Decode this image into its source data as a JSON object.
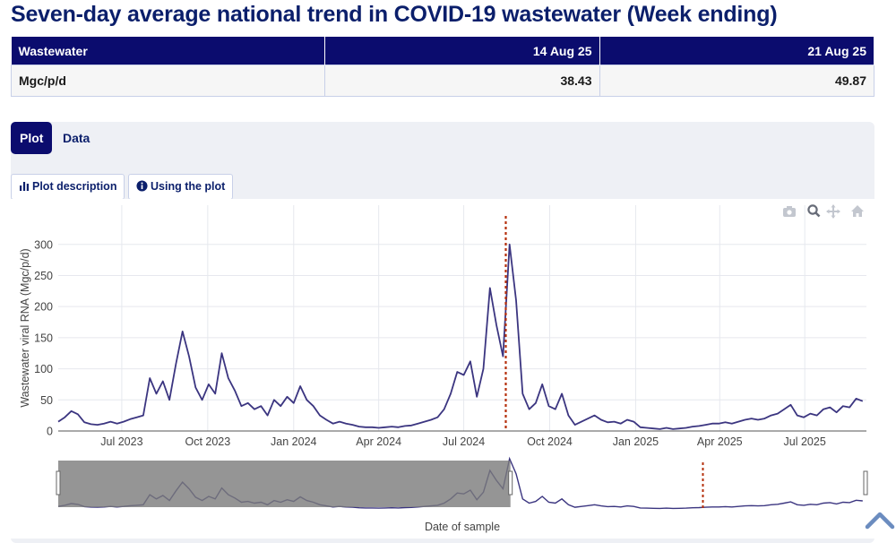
{
  "page": {
    "title": "Seven-day average national trend in COVID-19 wastewater (Week ending)"
  },
  "summary_table": {
    "header": {
      "label": "Wastewater",
      "col1": "14 Aug 25",
      "col2": "21 Aug 25"
    },
    "row": {
      "label": "Mgc/p/d",
      "col1": "38.43",
      "col2": "49.87"
    }
  },
  "tabs": [
    {
      "label": "Plot",
      "active": true
    },
    {
      "label": "Data",
      "active": false
    }
  ],
  "buttons": {
    "plot_description": "Plot description",
    "using_plot": "Using the plot"
  },
  "modebar_icons": [
    "camera-icon",
    "zoom-icon",
    "pan-icon",
    "home-icon"
  ],
  "colors": {
    "line": "#3b3580",
    "marker": "#b5300d",
    "grid": "#e6e8ee",
    "range_shade": "#8a8a8a",
    "header_bg": "#0b0c6e"
  },
  "chart_data": {
    "type": "line",
    "xlabel": "Date of sample",
    "ylabel": "Wastewater viral RNA (Mgc/p/d)",
    "ylim": [
      0,
      340
    ],
    "xlim": [
      "2023-04-24",
      "2025-09-05"
    ],
    "y_ticks": [
      0,
      50,
      100,
      150,
      200,
      250,
      300
    ],
    "x_ticks": [
      {
        "date": "2023-07-01",
        "label": "Jul 2023"
      },
      {
        "date": "2023-10-01",
        "label": "Oct 2023"
      },
      {
        "date": "2024-01-01",
        "label": "Jan 2024"
      },
      {
        "date": "2024-04-01",
        "label": "Apr 2024"
      },
      {
        "date": "2024-07-01",
        "label": "Jul 2024"
      },
      {
        "date": "2024-10-01",
        "label": "Oct 2024"
      },
      {
        "date": "2025-01-01",
        "label": "Jan 2025"
      },
      {
        "date": "2025-04-01",
        "label": "Apr 2025"
      },
      {
        "date": "2025-07-01",
        "label": "Jul 2025"
      }
    ],
    "grid": true,
    "marker_line_date": "2024-08-15",
    "range_selection": [
      "2023-04-24",
      "2024-08-20"
    ],
    "series": [
      {
        "points": [
          [
            "2023-04-24",
            15
          ],
          [
            "2023-05-01",
            22
          ],
          [
            "2023-05-08",
            32
          ],
          [
            "2023-05-15",
            27
          ],
          [
            "2023-05-22",
            14
          ],
          [
            "2023-05-29",
            11
          ],
          [
            "2023-06-05",
            10
          ],
          [
            "2023-06-12",
            12
          ],
          [
            "2023-06-19",
            15
          ],
          [
            "2023-06-26",
            12
          ],
          [
            "2023-07-03",
            15
          ],
          [
            "2023-07-10",
            19
          ],
          [
            "2023-07-17",
            22
          ],
          [
            "2023-07-24",
            25
          ],
          [
            "2023-07-31",
            85
          ],
          [
            "2023-08-07",
            60
          ],
          [
            "2023-08-14",
            80
          ],
          [
            "2023-08-21",
            50
          ],
          [
            "2023-08-28",
            108
          ],
          [
            "2023-09-04",
            160
          ],
          [
            "2023-09-11",
            120
          ],
          [
            "2023-09-18",
            70
          ],
          [
            "2023-09-25",
            50
          ],
          [
            "2023-10-02",
            75
          ],
          [
            "2023-10-09",
            60
          ],
          [
            "2023-10-16",
            125
          ],
          [
            "2023-10-23",
            85
          ],
          [
            "2023-10-30",
            65
          ],
          [
            "2023-11-06",
            40
          ],
          [
            "2023-11-13",
            45
          ],
          [
            "2023-11-20",
            35
          ],
          [
            "2023-11-27",
            40
          ],
          [
            "2023-12-04",
            25
          ],
          [
            "2023-12-11",
            50
          ],
          [
            "2023-12-18",
            40
          ],
          [
            "2023-12-25",
            55
          ],
          [
            "2024-01-01",
            45
          ],
          [
            "2024-01-08",
            72
          ],
          [
            "2024-01-15",
            50
          ],
          [
            "2024-01-22",
            40
          ],
          [
            "2024-01-29",
            25
          ],
          [
            "2024-02-05",
            18
          ],
          [
            "2024-02-12",
            12
          ],
          [
            "2024-02-19",
            15
          ],
          [
            "2024-02-26",
            12
          ],
          [
            "2024-03-04",
            10
          ],
          [
            "2024-03-11",
            7
          ],
          [
            "2024-03-18",
            6
          ],
          [
            "2024-03-25",
            6
          ],
          [
            "2024-04-01",
            5
          ],
          [
            "2024-04-08",
            6
          ],
          [
            "2024-04-15",
            7
          ],
          [
            "2024-04-22",
            6
          ],
          [
            "2024-04-29",
            8
          ],
          [
            "2024-05-06",
            9
          ],
          [
            "2024-05-13",
            12
          ],
          [
            "2024-05-20",
            15
          ],
          [
            "2024-05-27",
            18
          ],
          [
            "2024-06-03",
            22
          ],
          [
            "2024-06-10",
            35
          ],
          [
            "2024-06-17",
            60
          ],
          [
            "2024-06-24",
            95
          ],
          [
            "2024-07-01",
            90
          ],
          [
            "2024-07-08",
            112
          ],
          [
            "2024-07-15",
            55
          ],
          [
            "2024-07-22",
            100
          ],
          [
            "2024-07-29",
            230
          ],
          [
            "2024-08-05",
            170
          ],
          [
            "2024-08-12",
            120
          ],
          [
            "2024-08-19",
            300
          ],
          [
            "2024-08-26",
            210
          ],
          [
            "2024-09-02",
            60
          ],
          [
            "2024-09-09",
            35
          ],
          [
            "2024-09-16",
            45
          ],
          [
            "2024-09-23",
            75
          ],
          [
            "2024-09-30",
            40
          ],
          [
            "2024-10-07",
            35
          ],
          [
            "2024-10-14",
            60
          ],
          [
            "2024-10-21",
            25
          ],
          [
            "2024-10-28",
            10
          ],
          [
            "2024-11-04",
            15
          ],
          [
            "2024-11-11",
            20
          ],
          [
            "2024-11-18",
            25
          ],
          [
            "2024-11-25",
            18
          ],
          [
            "2024-12-02",
            14
          ],
          [
            "2024-12-09",
            15
          ],
          [
            "2024-12-16",
            12
          ],
          [
            "2024-12-23",
            18
          ],
          [
            "2024-12-30",
            15
          ],
          [
            "2025-01-06",
            6
          ],
          [
            "2025-01-13",
            5
          ],
          [
            "2025-01-20",
            4
          ],
          [
            "2025-01-27",
            3
          ],
          [
            "2025-02-03",
            5
          ],
          [
            "2025-02-10",
            3
          ],
          [
            "2025-02-17",
            4
          ],
          [
            "2025-02-24",
            5
          ],
          [
            "2025-03-03",
            7
          ],
          [
            "2025-03-10",
            8
          ],
          [
            "2025-03-17",
            10
          ],
          [
            "2025-03-24",
            12
          ],
          [
            "2025-03-31",
            12
          ],
          [
            "2025-04-07",
            14
          ],
          [
            "2025-04-14",
            12
          ],
          [
            "2025-04-21",
            15
          ],
          [
            "2025-04-28",
            18
          ],
          [
            "2025-05-05",
            20
          ],
          [
            "2025-05-12",
            18
          ],
          [
            "2025-05-19",
            20
          ],
          [
            "2025-05-26",
            25
          ],
          [
            "2025-06-02",
            28
          ],
          [
            "2025-06-09",
            35
          ],
          [
            "2025-06-16",
            42
          ],
          [
            "2025-06-23",
            25
          ],
          [
            "2025-06-30",
            22
          ],
          [
            "2025-07-07",
            28
          ],
          [
            "2025-07-14",
            25
          ],
          [
            "2025-07-21",
            35
          ],
          [
            "2025-07-28",
            38
          ],
          [
            "2025-08-04",
            30
          ],
          [
            "2025-08-11",
            40
          ],
          [
            "2025-08-18",
            38
          ],
          [
            "2025-08-25",
            52
          ],
          [
            "2025-09-01",
            48
          ]
        ]
      }
    ]
  }
}
